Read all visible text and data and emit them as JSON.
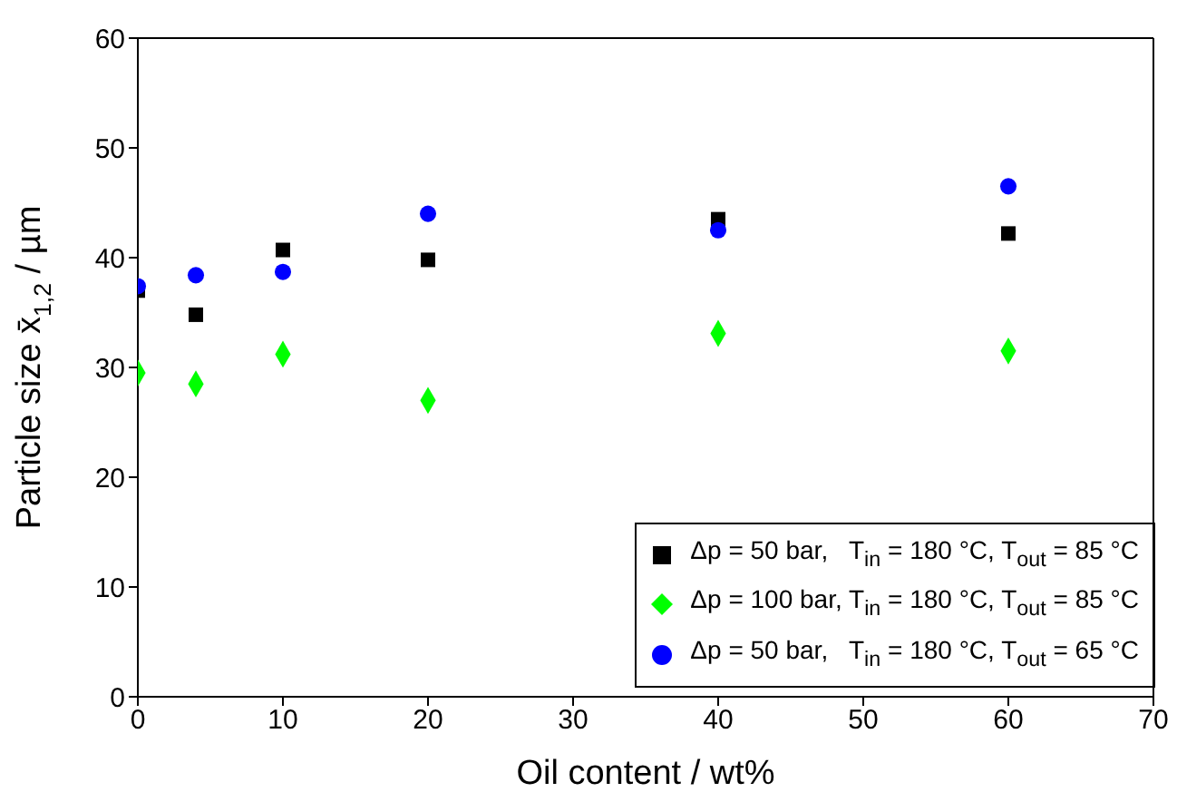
{
  "chart_data": {
    "type": "scatter",
    "xlabel": "Oil content / wt%",
    "ylabel": "Particle size x̄$_{1,2}$ / µm",
    "x": [
      0,
      4,
      10,
      20,
      40,
      60
    ],
    "series": [
      {
        "name": "Δp = 50 bar,   T$_{in}$ = 180 °C, T$_{out}$ = 85 °C",
        "color": "#000000",
        "marker": "square",
        "values": [
          37.0,
          34.8,
          40.7,
          39.8,
          43.5,
          42.2
        ]
      },
      {
        "name": "Δp = 100 bar, T$_{in}$ = 180 °C, T$_{out}$ = 85 °C",
        "color": "#00ff00",
        "marker": "diamond",
        "values": [
          29.5,
          28.5,
          31.2,
          27.0,
          33.1,
          31.5
        ]
      },
      {
        "name": "Δp = 50 bar,   T$_{in}$ = 180 °C, T$_{out}$ = 65 °C",
        "color": "#0000ff",
        "marker": "circle",
        "values": [
          37.4,
          38.4,
          38.7,
          44.0,
          42.5,
          46.5
        ]
      }
    ],
    "xlim": [
      0,
      70
    ],
    "xticks": [
      0,
      10,
      20,
      30,
      40,
      50,
      60,
      70
    ],
    "ylim": [
      0,
      60
    ],
    "yticks": [
      0,
      10,
      20,
      30,
      40,
      50,
      60
    ],
    "legend": "bottom right"
  }
}
